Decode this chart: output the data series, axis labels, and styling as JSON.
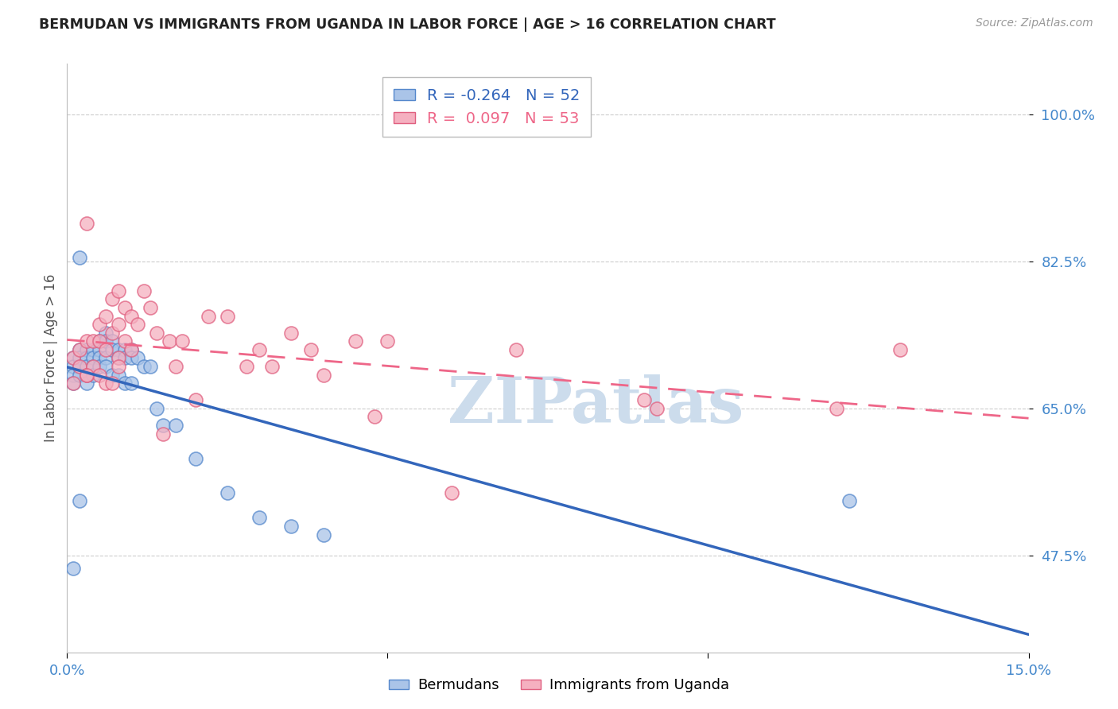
{
  "title": "BERMUDAN VS IMMIGRANTS FROM UGANDA IN LABOR FORCE | AGE > 16 CORRELATION CHART",
  "source": "Source: ZipAtlas.com",
  "ylabel": "In Labor Force | Age > 16",
  "xlim": [
    0.0,
    0.15
  ],
  "ylim": [
    0.36,
    1.06
  ],
  "yticks": [
    0.475,
    0.65,
    0.825,
    1.0
  ],
  "ytick_labels": [
    "47.5%",
    "65.0%",
    "82.5%",
    "100.0%"
  ],
  "xticks": [
    0.0,
    0.05,
    0.1,
    0.15
  ],
  "xtick_labels": [
    "0.0%",
    "",
    "",
    "15.0%"
  ],
  "legend_blue_r": "-0.264",
  "legend_blue_n": "52",
  "legend_pink_r": "0.097",
  "legend_pink_n": "53",
  "blue_face_color": "#aac4e8",
  "pink_face_color": "#f5b0c0",
  "blue_edge_color": "#5588cc",
  "pink_edge_color": "#e06080",
  "blue_line_color": "#3366bb",
  "pink_line_color": "#ee6688",
  "watermark": "ZIPatlas",
  "watermark_color": "#ccdcec",
  "blue_scatter_x": [
    0.001,
    0.001,
    0.001,
    0.001,
    0.002,
    0.002,
    0.002,
    0.002,
    0.002,
    0.003,
    0.003,
    0.003,
    0.003,
    0.003,
    0.004,
    0.004,
    0.004,
    0.004,
    0.005,
    0.005,
    0.005,
    0.005,
    0.006,
    0.006,
    0.006,
    0.006,
    0.007,
    0.007,
    0.007,
    0.008,
    0.008,
    0.008,
    0.009,
    0.009,
    0.009,
    0.01,
    0.01,
    0.01,
    0.011,
    0.012,
    0.013,
    0.014,
    0.015,
    0.017,
    0.02,
    0.025,
    0.03,
    0.035,
    0.04,
    0.001,
    0.002,
    0.122
  ],
  "blue_scatter_y": [
    0.71,
    0.7,
    0.69,
    0.68,
    0.83,
    0.72,
    0.71,
    0.7,
    0.69,
    0.72,
    0.71,
    0.7,
    0.69,
    0.68,
    0.72,
    0.71,
    0.7,
    0.69,
    0.73,
    0.72,
    0.71,
    0.7,
    0.74,
    0.73,
    0.71,
    0.7,
    0.73,
    0.72,
    0.69,
    0.72,
    0.71,
    0.69,
    0.72,
    0.71,
    0.68,
    0.72,
    0.71,
    0.68,
    0.71,
    0.7,
    0.7,
    0.65,
    0.63,
    0.63,
    0.59,
    0.55,
    0.52,
    0.51,
    0.5,
    0.46,
    0.54,
    0.54
  ],
  "pink_scatter_x": [
    0.001,
    0.001,
    0.002,
    0.002,
    0.003,
    0.003,
    0.003,
    0.004,
    0.004,
    0.005,
    0.005,
    0.005,
    0.006,
    0.006,
    0.007,
    0.007,
    0.008,
    0.008,
    0.008,
    0.009,
    0.009,
    0.01,
    0.01,
    0.011,
    0.012,
    0.013,
    0.014,
    0.015,
    0.016,
    0.017,
    0.018,
    0.02,
    0.022,
    0.025,
    0.028,
    0.03,
    0.032,
    0.035,
    0.038,
    0.04,
    0.045,
    0.048,
    0.05,
    0.06,
    0.07,
    0.09,
    0.12,
    0.13,
    0.003,
    0.006,
    0.007,
    0.008,
    0.092
  ],
  "pink_scatter_y": [
    0.71,
    0.68,
    0.72,
    0.7,
    0.87,
    0.73,
    0.69,
    0.73,
    0.7,
    0.75,
    0.73,
    0.69,
    0.76,
    0.72,
    0.78,
    0.74,
    0.79,
    0.75,
    0.71,
    0.77,
    0.73,
    0.76,
    0.72,
    0.75,
    0.79,
    0.77,
    0.74,
    0.62,
    0.73,
    0.7,
    0.73,
    0.66,
    0.76,
    0.76,
    0.7,
    0.72,
    0.7,
    0.74,
    0.72,
    0.69,
    0.73,
    0.64,
    0.73,
    0.55,
    0.72,
    0.66,
    0.65,
    0.72,
    0.69,
    0.68,
    0.68,
    0.7,
    0.65
  ]
}
